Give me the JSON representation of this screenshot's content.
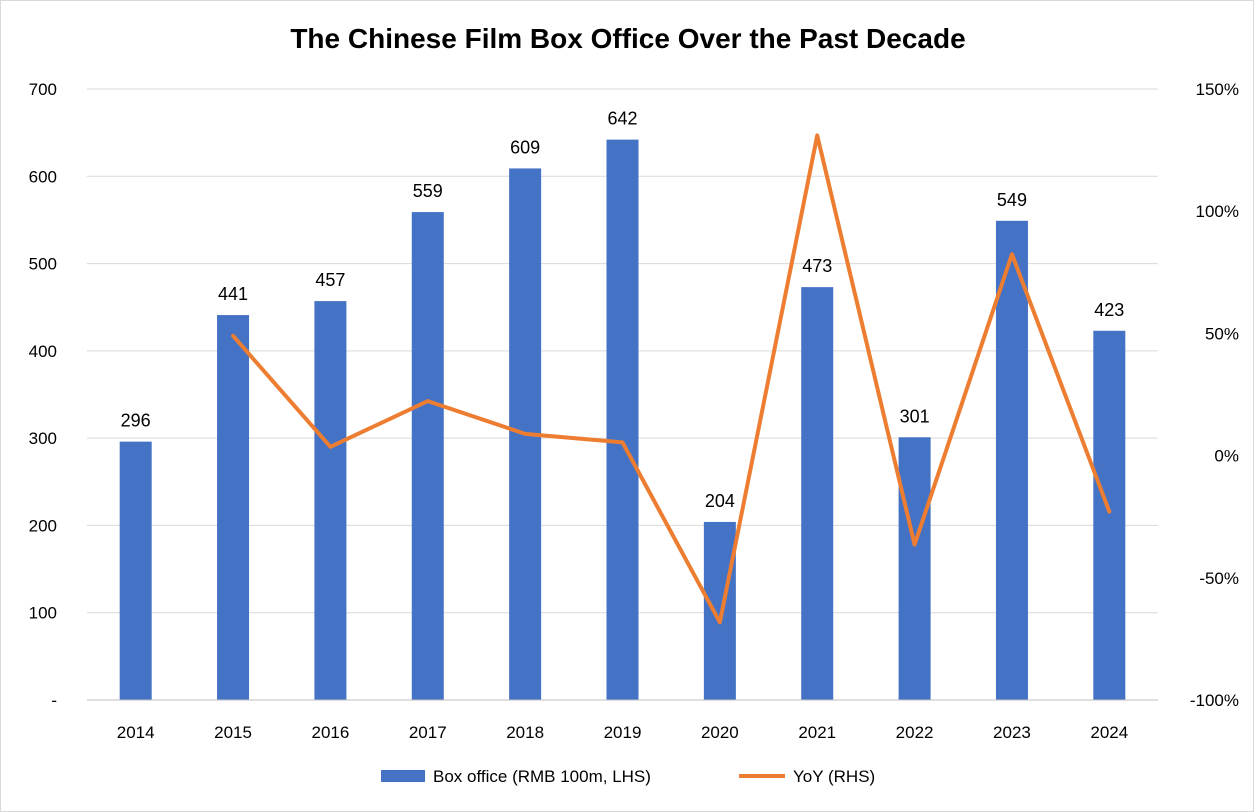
{
  "chart_data": {
    "type": "bar",
    "title": "The Chinese Film Box Office Over the Past Decade",
    "categories": [
      "2014",
      "2015",
      "2016",
      "2017",
      "2018",
      "2019",
      "2020",
      "2021",
      "2022",
      "2023",
      "2024"
    ],
    "series": [
      {
        "name": "Box office (RMB 100m, LHS)",
        "type": "bar",
        "axis": "left",
        "color": "#4472C4",
        "values": [
          296,
          441,
          457,
          559,
          609,
          642,
          204,
          473,
          301,
          549,
          423
        ],
        "labels": [
          "296",
          "441",
          "457",
          "559",
          "609",
          "642",
          "204",
          "473",
          "301",
          "549",
          "423"
        ]
      },
      {
        "name": "YoY (RHS)",
        "type": "line",
        "axis": "right",
        "color": "#ED7D31",
        "values": [
          null,
          0.49,
          0.036,
          0.223,
          0.089,
          0.054,
          -0.682,
          1.31,
          -0.364,
          0.824,
          -0.229
        ]
      }
    ],
    "left_axis": {
      "min": 0,
      "max": 700,
      "ticks": [
        "-",
        "100",
        "200",
        "300",
        "400",
        "500",
        "600",
        "700"
      ]
    },
    "right_axis": {
      "min": -1.0,
      "max": 1.5,
      "ticks": [
        "-100%",
        "-50%",
        "0%",
        "50%",
        "100%",
        "150%"
      ]
    },
    "grid": true,
    "legend_position": "bottom"
  }
}
